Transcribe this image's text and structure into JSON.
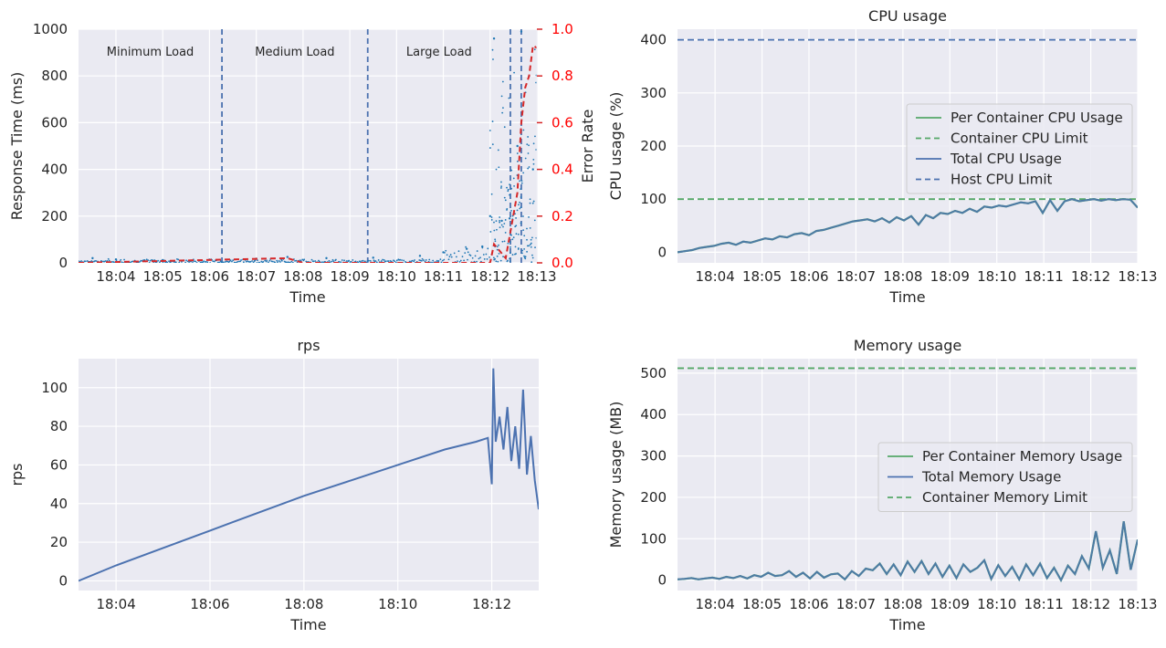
{
  "chart_data": [
    {
      "type": "scatter",
      "title": "",
      "xlabel": "Time",
      "ylabel": "Response Time (ms)",
      "y2label": "Error Rate",
      "x_ticks": [
        "18:04",
        "18:05",
        "18:06",
        "18:07",
        "18:08",
        "18:09",
        "18:10",
        "18:11",
        "18:12",
        "18:13"
      ],
      "xlim": [
        "18:03:12",
        "18:13:00"
      ],
      "ylim": [
        0,
        1000
      ],
      "y_ticks": [
        0,
        200,
        400,
        600,
        800,
        1000
      ],
      "y2lim": [
        0,
        1.0
      ],
      "y2_ticks": [
        "0.0",
        "0.2",
        "0.4",
        "0.6",
        "0.8",
        "1.0"
      ],
      "phases": [
        {
          "label": "Minimum Load",
          "end": "18:06:16"
        },
        {
          "label": "Medium Load",
          "end": "18:09:23"
        },
        {
          "label": "Large Load",
          "end": "18:12:26"
        }
      ],
      "series": [
        {
          "name": "Response Time",
          "color": "#1f77b4",
          "points": [
            [
              "18:03:30",
              20
            ],
            [
              "18:04:00",
              15
            ],
            [
              "18:05:00",
              12
            ],
            [
              "18:06:00",
              14
            ],
            [
              "18:07:00",
              18
            ],
            [
              "18:07:40",
              25
            ],
            [
              "18:08:30",
              20
            ],
            [
              "18:09:30",
              22
            ],
            [
              "18:10:30",
              30
            ],
            [
              "18:11:00",
              45
            ],
            [
              "18:11:30",
              60
            ],
            [
              "18:11:50",
              70
            ],
            [
              "18:12:00",
              200
            ],
            [
              "18:12:05",
              960
            ],
            [
              "18:12:15",
              180
            ],
            [
              "18:12:25",
              190
            ],
            [
              "18:12:35",
              500
            ],
            [
              "18:12:40",
              990
            ],
            [
              "18:12:50",
              800
            ],
            [
              "18:12:55",
              400
            ]
          ]
        },
        {
          "name": "Error Rate",
          "color": "#d62728",
          "axis": "right",
          "points": [
            [
              "18:03:12",
              0.0
            ],
            [
              "18:07:40",
              0.02
            ],
            [
              "18:08:00",
              0.0
            ],
            [
              "18:12:00",
              0.0
            ],
            [
              "18:12:05",
              0.08
            ],
            [
              "18:12:20",
              0.02
            ],
            [
              "18:12:35",
              0.3
            ],
            [
              "18:12:40",
              0.6
            ],
            [
              "18:12:45",
              0.75
            ],
            [
              "18:12:50",
              0.8
            ],
            [
              "18:12:55",
              0.93
            ],
            [
              "18:13:00",
              0.92
            ]
          ]
        }
      ]
    },
    {
      "type": "line",
      "title": "CPU usage",
      "xlabel": "Time",
      "ylabel": "CPU usage (%)",
      "x_ticks": [
        "18:04",
        "18:05",
        "18:06",
        "18:07",
        "18:08",
        "18:09",
        "18:10",
        "18:11",
        "18:12",
        "18:13"
      ],
      "xlim": [
        "18:03:12",
        "18:13:00"
      ],
      "ylim": [
        -20,
        420
      ],
      "y_ticks": [
        0,
        100,
        200,
        300,
        400
      ],
      "legend": "center-right",
      "series": [
        {
          "name": "Per Container CPU Usage",
          "color": "#55a868",
          "style": "solid"
        },
        {
          "name": "Container CPU Limit",
          "color": "#55a868",
          "style": "dashed",
          "value": 100
        },
        {
          "name": "Total CPU Usage",
          "color": "#4c72b0",
          "style": "solid",
          "x_start": "18:03:12",
          "x_end": "18:13:00",
          "values": [
            0,
            2,
            4,
            8,
            10,
            12,
            16,
            18,
            14,
            20,
            18,
            22,
            26,
            24,
            30,
            28,
            34,
            36,
            32,
            40,
            42,
            46,
            50,
            54,
            58,
            60,
            62,
            58,
            64,
            56,
            66,
            60,
            68,
            52,
            70,
            64,
            74,
            72,
            78,
            74,
            82,
            76,
            86,
            84,
            88,
            86,
            90,
            94,
            92,
            96,
            74,
            98,
            78,
            96,
            100,
            96,
            98,
            100,
            97,
            100,
            98,
            100,
            99,
            84
          ]
        },
        {
          "name": "Host CPU Limit",
          "color": "#4c72b0",
          "style": "dashed",
          "value": 400
        }
      ]
    },
    {
      "type": "line",
      "title": "rps",
      "xlabel": "Time",
      "ylabel": "rps",
      "x_ticks": [
        "18:04",
        "18:06",
        "18:08",
        "18:10",
        "18:12"
      ],
      "xlim": [
        "18:03:12",
        "18:13:00"
      ],
      "ylim": [
        -5,
        115
      ],
      "y_ticks": [
        0,
        20,
        40,
        60,
        80,
        100
      ],
      "series": [
        {
          "name": "rps",
          "color": "#4c72b0",
          "points": [
            [
              "18:03:12",
              0
            ],
            [
              "18:04:00",
              8
            ],
            [
              "18:05:00",
              17
            ],
            [
              "18:06:00",
              26
            ],
            [
              "18:07:00",
              35
            ],
            [
              "18:08:00",
              44
            ],
            [
              "18:09:00",
              52
            ],
            [
              "18:10:00",
              60
            ],
            [
              "18:11:00",
              68
            ],
            [
              "18:11:40",
              72
            ],
            [
              "18:11:55",
              74
            ],
            [
              "18:12:00",
              50
            ],
            [
              "18:12:02",
              110
            ],
            [
              "18:12:05",
              72
            ],
            [
              "18:12:10",
              85
            ],
            [
              "18:12:15",
              68
            ],
            [
              "18:12:20",
              90
            ],
            [
              "18:12:25",
              62
            ],
            [
              "18:12:30",
              80
            ],
            [
              "18:12:35",
              58
            ],
            [
              "18:12:40",
              99
            ],
            [
              "18:12:45",
              55
            ],
            [
              "18:12:50",
              75
            ],
            [
              "18:12:55",
              52
            ],
            [
              "18:13:00",
              37
            ]
          ]
        }
      ]
    },
    {
      "type": "line",
      "title": "Memory usage",
      "xlabel": "Time",
      "ylabel": "Memory usage (MB)",
      "x_ticks": [
        "18:04",
        "18:05",
        "18:06",
        "18:07",
        "18:08",
        "18:09",
        "18:10",
        "18:11",
        "18:12",
        "18:13"
      ],
      "xlim": [
        "18:03:12",
        "18:13:00"
      ],
      "ylim": [
        -25,
        535
      ],
      "y_ticks": [
        0,
        100,
        200,
        300,
        400,
        500
      ],
      "legend": "center-right",
      "series": [
        {
          "name": "Per Container Memory Usage",
          "color": "#55a868",
          "style": "solid"
        },
        {
          "name": "Total Memory Usage",
          "color": "#4c72b0",
          "style": "solid",
          "x_start": "18:03:12",
          "x_end": "18:13:00",
          "values": [
            2,
            3,
            5,
            2,
            4,
            6,
            3,
            8,
            5,
            10,
            4,
            12,
            8,
            18,
            10,
            12,
            22,
            8,
            18,
            4,
            20,
            6,
            14,
            16,
            2,
            22,
            10,
            28,
            24,
            40,
            15,
            38,
            12,
            45,
            20,
            46,
            15,
            40,
            8,
            35,
            5,
            38,
            20,
            30,
            48,
            3,
            36,
            10,
            32,
            2,
            38,
            12,
            40,
            5,
            30,
            0,
            35,
            15,
            58,
            28,
            118,
            30,
            72,
            15,
            142,
            25,
            98
          ]
        },
        {
          "name": "Container Memory Limit",
          "color": "#55a868",
          "style": "dashed",
          "value": 512
        }
      ]
    }
  ]
}
